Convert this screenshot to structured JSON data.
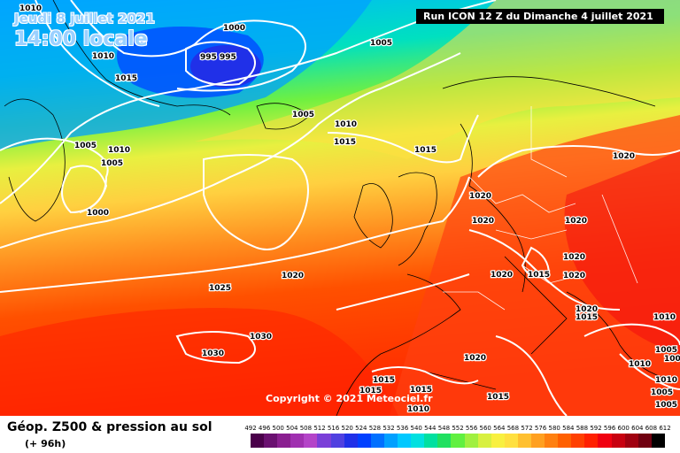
{
  "header": {
    "date_line": "Jeudi 8 juillet 2021",
    "time_line": "14:00 locale",
    "run_info": "Run ICON 12 Z du Dimanche 4 juillet 2021"
  },
  "copyright": "Copyright © 2021 Meteociel.fr",
  "footer": {
    "title": "Géop. Z500 & pression au sol",
    "subtitle": "(+ 96h)"
  },
  "legend": {
    "ticks": [
      "492",
      "496",
      "500",
      "504",
      "508",
      "512",
      "516",
      "520",
      "524",
      "528",
      "532",
      "536",
      "540",
      "544",
      "548",
      "552",
      "556",
      "560",
      "564",
      "568",
      "572",
      "576",
      "580",
      "584",
      "588",
      "592",
      "596",
      "600",
      "604",
      "608",
      "612"
    ],
    "colors": [
      "#4a004a",
      "#6a1070",
      "#8a1f90",
      "#a030b0",
      "#b444c8",
      "#7a3fd8",
      "#5040e0",
      "#2030e8",
      "#0040ff",
      "#0070ff",
      "#00a0ff",
      "#00c8ff",
      "#00e0e0",
      "#00e0a0",
      "#20e060",
      "#60f040",
      "#a0f040",
      "#d8f040",
      "#f8f040",
      "#ffe040",
      "#ffc030",
      "#ffa020",
      "#ff8010",
      "#ff6000",
      "#ff4000",
      "#ff2000",
      "#f00010",
      "#c80010",
      "#a00010",
      "#700010",
      "#000000"
    ]
  },
  "isobar_labels": [
    "1010",
    "1000",
    "1005",
    "1010",
    "995",
    "995",
    "1015",
    "1005",
    "1010",
    "1015",
    "1015",
    "1005",
    "1010",
    "1005",
    "1000",
    "1020",
    "1020",
    "1020",
    "1020",
    "1020",
    "1015",
    "1020",
    "1020",
    "1020",
    "1015",
    "1025",
    "1020",
    "1030",
    "1030",
    "1015",
    "1015",
    "1015",
    "1020",
    "1015",
    "1010",
    "1010",
    "1005",
    "1005",
    "1010",
    "1010",
    "1005",
    "1005"
  ]
}
